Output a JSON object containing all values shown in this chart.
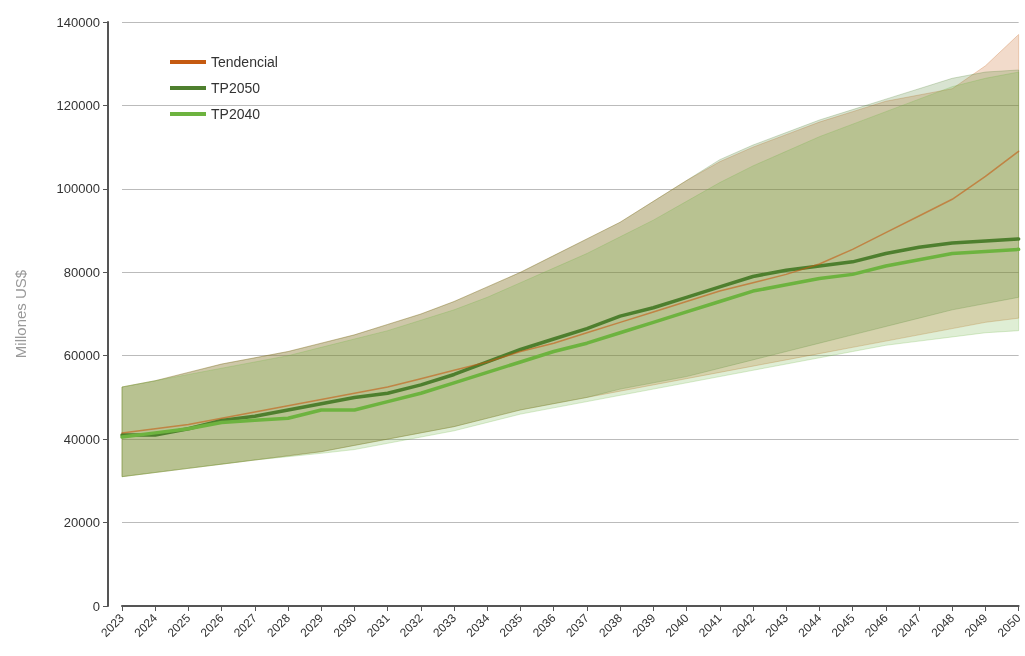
{
  "chart_data": {
    "type": "line",
    "ylabel": "Millones US$",
    "categories": [
      "2023",
      "2024",
      "2025",
      "2026",
      "2027",
      "2028",
      "2029",
      "2030",
      "2031",
      "2032",
      "2033",
      "2034",
      "2035",
      "2036",
      "2037",
      "2038",
      "2039",
      "2040",
      "2041",
      "2042",
      "2043",
      "2044",
      "2045",
      "2046",
      "2047",
      "2048",
      "2049",
      "2050"
    ],
    "series": [
      {
        "name": "Tendencial",
        "color": "#c55a11",
        "values": [
          41500,
          42500,
          43500,
          45000,
          46500,
          48000,
          49500,
          51000,
          52500,
          54500,
          56500,
          58500,
          61000,
          63000,
          65500,
          68000,
          70500,
          73000,
          75500,
          77500,
          79500,
          82000,
          85500,
          89500,
          93500,
          97500,
          103000,
          109000
        ],
        "lower": [
          31000,
          32000,
          33000,
          34000,
          35000,
          36000,
          37000,
          38500,
          40000,
          41500,
          43000,
          45000,
          47000,
          48500,
          50000,
          51500,
          53000,
          54500,
          56000,
          57500,
          59000,
          60500,
          62000,
          63500,
          65000,
          66500,
          68000,
          69000
        ],
        "upper": [
          52500,
          54000,
          56000,
          58000,
          59500,
          61000,
          63000,
          65000,
          67500,
          70000,
          73000,
          76500,
          80000,
          84000,
          88000,
          92000,
          97000,
          102000,
          106500,
          110000,
          113000,
          116000,
          118500,
          121000,
          122500,
          124000,
          129500,
          137000
        ]
      },
      {
        "name": "TP2050",
        "color": "#4e7f2e",
        "values": [
          41000,
          41000,
          42500,
          44500,
          45500,
          47000,
          48500,
          50000,
          51000,
          53000,
          55500,
          58500,
          61500,
          64000,
          66500,
          69500,
          71500,
          74000,
          76500,
          79000,
          80500,
          81500,
          82500,
          84500,
          86000,
          87000,
          87500,
          88000
        ],
        "lower": [
          31000,
          32000,
          33000,
          34000,
          35000,
          36000,
          37000,
          38500,
          40000,
          41500,
          43000,
          45000,
          47000,
          48500,
          50000,
          52000,
          53500,
          55000,
          57000,
          59000,
          61000,
          63000,
          65000,
          67000,
          69000,
          71000,
          72500,
          74000
        ],
        "upper": [
          52500,
          54000,
          56000,
          58000,
          59500,
          61000,
          63000,
          65000,
          67500,
          70000,
          73000,
          76500,
          80000,
          84000,
          88000,
          92000,
          97000,
          102000,
          107000,
          110500,
          113500,
          116500,
          119000,
          121500,
          124000,
          126500,
          128000,
          128500
        ]
      },
      {
        "name": "TP2040",
        "color": "#6db33f",
        "values": [
          40500,
          41500,
          42500,
          44000,
          44500,
          45000,
          47000,
          47000,
          49000,
          51000,
          53500,
          56000,
          58500,
          61000,
          63000,
          65500,
          68000,
          70500,
          73000,
          75500,
          77000,
          78500,
          79500,
          81500,
          83000,
          84500,
          85000,
          85500
        ],
        "lower": [
          31000,
          32000,
          33000,
          34000,
          35000,
          35800,
          36600,
          37500,
          39000,
          40500,
          42000,
          44000,
          46000,
          47500,
          49000,
          50500,
          52000,
          53500,
          55000,
          56500,
          58000,
          59500,
          61000,
          62500,
          63500,
          64500,
          65500,
          66000
        ],
        "upper": [
          52500,
          54000,
          55500,
          57000,
          58500,
          60000,
          62000,
          64000,
          66000,
          68500,
          71000,
          74000,
          77500,
          81000,
          84500,
          88500,
          92500,
          97000,
          101500,
          105500,
          109000,
          112500,
          115500,
          118500,
          121500,
          124500,
          126500,
          128000
        ]
      }
    ],
    "ylim": [
      0,
      140000
    ],
    "yticks": [
      0,
      20000,
      40000,
      60000,
      80000,
      100000,
      120000,
      140000
    ],
    "grid": "y",
    "legend": "top left",
    "marker": "none",
    "line_style": "solid"
  }
}
